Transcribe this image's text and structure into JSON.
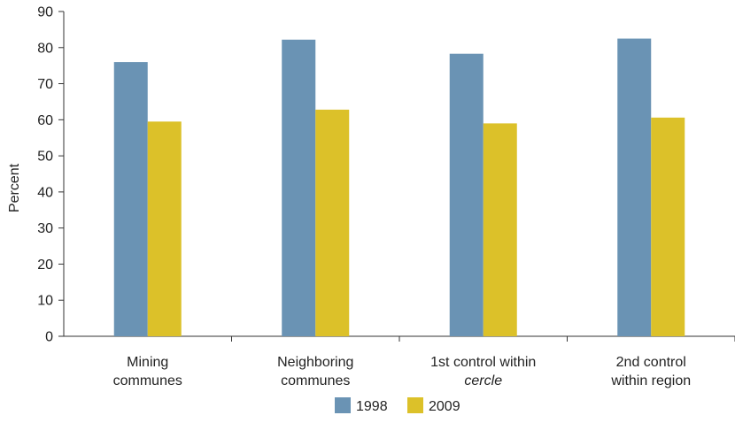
{
  "chart_data": {
    "type": "bar",
    "title": "",
    "xlabel": "",
    "ylabel": "Percent",
    "ylim": [
      0,
      90
    ],
    "yticks": [
      0,
      10,
      20,
      30,
      40,
      50,
      60,
      70,
      80,
      90
    ],
    "categories": [
      {
        "lines": [
          "Mining",
          "communes"
        ],
        "italic_lines": []
      },
      {
        "lines": [
          "Neighboring",
          "communes"
        ],
        "italic_lines": []
      },
      {
        "lines": [
          "1st control within",
          "cercle"
        ],
        "italic_lines": [
          1
        ]
      },
      {
        "lines": [
          "2nd control",
          "within region"
        ],
        "italic_lines": []
      }
    ],
    "series": [
      {
        "name": "1998",
        "color": "#6a93b4",
        "values": [
          76,
          82.2,
          78.3,
          82.5
        ]
      },
      {
        "name": "2009",
        "color": "#dcc129",
        "values": [
          59.5,
          62.8,
          59,
          60.6
        ]
      }
    ],
    "grid": false,
    "legend_position": "bottom-center"
  }
}
